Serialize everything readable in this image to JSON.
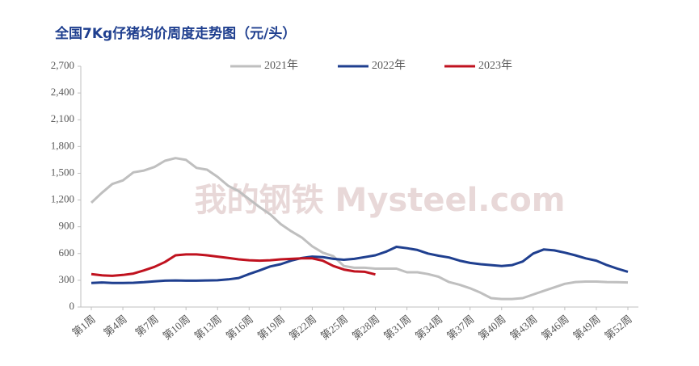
{
  "chart_data": {
    "type": "line",
    "title": "全国7Kg仔猪均价周度走势图（元/头）",
    "watermark": "我的钢铁 Mysteel.com",
    "categories": [
      "第1周",
      null,
      null,
      "第4周",
      null,
      null,
      "第7周",
      null,
      null,
      "第10周",
      null,
      null,
      "第13周",
      null,
      null,
      "第16周",
      null,
      null,
      "第19周",
      null,
      null,
      "第22周",
      null,
      null,
      "第25周",
      null,
      null,
      "第28周",
      null,
      null,
      "第31周",
      null,
      null,
      "第34周",
      null,
      null,
      "第37周",
      null,
      null,
      "第40周",
      null,
      null,
      "第43周",
      null,
      null,
      "第46周",
      null,
      null,
      "第49周",
      null,
      null,
      "第52周"
    ],
    "series": [
      {
        "name": "2021年",
        "color": "#bfbfbf",
        "values": [
          1170,
          1280,
          1380,
          1420,
          1510,
          1530,
          1570,
          1640,
          1670,
          1650,
          1560,
          1540,
          1460,
          1360,
          1300,
          1210,
          1120,
          1040,
          930,
          850,
          780,
          680,
          610,
          570,
          460,
          440,
          440,
          430,
          430,
          430,
          390,
          390,
          370,
          340,
          280,
          250,
          210,
          160,
          100,
          90,
          90,
          100,
          140,
          180,
          220,
          260,
          280,
          285,
          285,
          280,
          278,
          275
        ]
      },
      {
        "name": "2022年",
        "color": "#1f3f8f",
        "values": [
          270,
          275,
          270,
          270,
          272,
          278,
          288,
          295,
          298,
          295,
          295,
          298,
          300,
          310,
          325,
          370,
          410,
          455,
          480,
          520,
          550,
          565,
          560,
          540,
          530,
          540,
          560,
          580,
          620,
          675,
          660,
          640,
          600,
          575,
          555,
          520,
          495,
          480,
          470,
          460,
          470,
          510,
          600,
          645,
          635,
          610,
          580,
          545,
          520,
          470,
          430,
          395
        ]
      },
      {
        "name": "2023年",
        "color": "#c0121f",
        "values": [
          370,
          355,
          350,
          360,
          375,
          410,
          450,
          505,
          580,
          590,
          590,
          580,
          565,
          550,
          535,
          525,
          520,
          525,
          535,
          540,
          545,
          545,
          520,
          460,
          420,
          400,
          395,
          365,
          null,
          null,
          null,
          null,
          null,
          null,
          null,
          null,
          null,
          null,
          null,
          null,
          null,
          null,
          null,
          null,
          null,
          null,
          null,
          null,
          null,
          null,
          null,
          null
        ]
      }
    ],
    "ylim": [
      0,
      2700
    ],
    "yticks": [
      0,
      300,
      600,
      900,
      {
        "value": 1200,
        "label": "1,200"
      },
      {
        "value": 1500,
        "label": "1,500"
      },
      {
        "value": 1800,
        "label": "1,800"
      },
      {
        "value": 2100,
        "label": "2,100"
      },
      {
        "value": 2400,
        "label": "2,400"
      },
      {
        "value": 2700,
        "label": "2,700"
      }
    ],
    "legend": "top"
  }
}
